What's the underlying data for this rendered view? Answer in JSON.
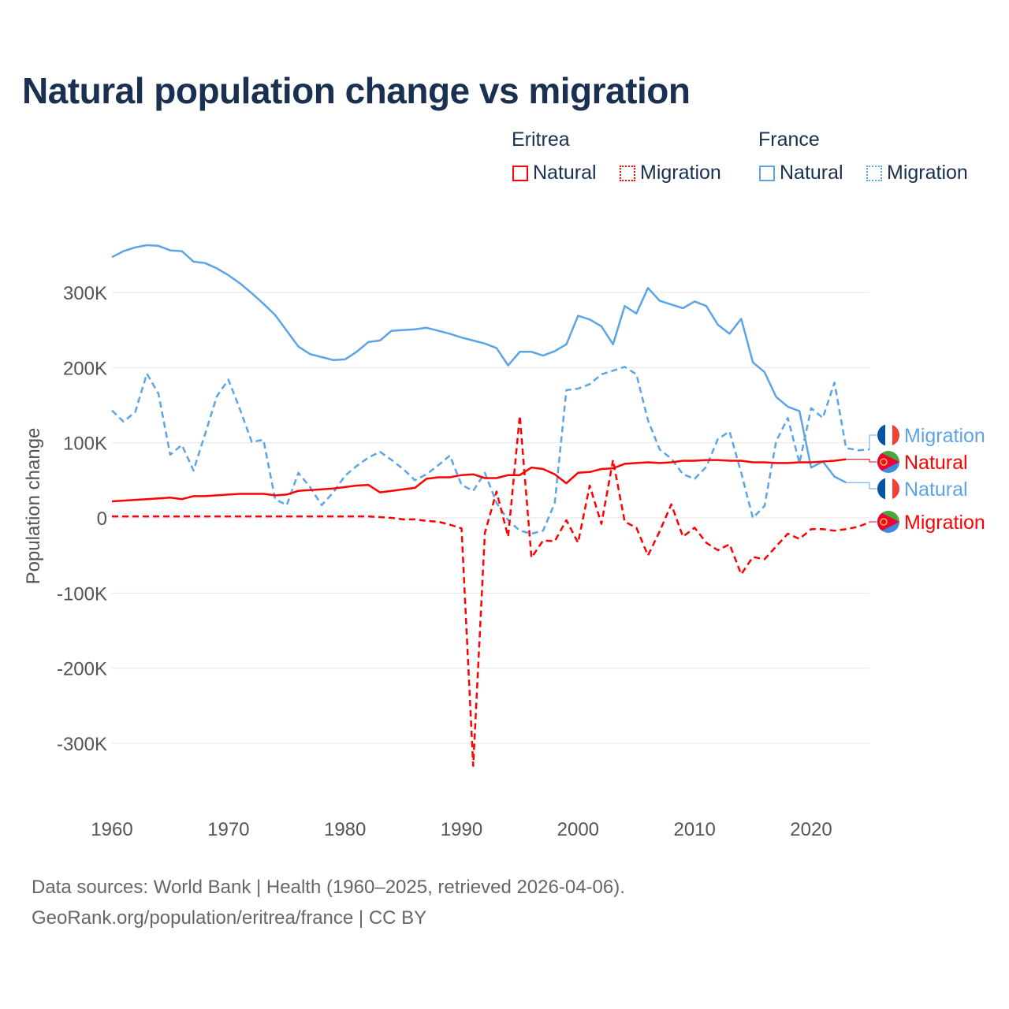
{
  "title": "Natural population change vs migration",
  "legend": {
    "groups": [
      {
        "name": "Eritrea",
        "items": [
          {
            "label": "Natural",
            "color": "#ff0000",
            "style": "solid"
          },
          {
            "label": "Migration",
            "color": "#ff0000",
            "style": "dotted"
          }
        ]
      },
      {
        "name": "France",
        "items": [
          {
            "label": "Natural",
            "color": "#5ba4e8",
            "style": "solid"
          },
          {
            "label": "Migration",
            "color": "#5ba4e8",
            "style": "dotted"
          }
        ]
      }
    ]
  },
  "footer": {
    "line1": "Data sources: World Bank | Health (1960–2025, retrieved 2026-04-06).",
    "line2": "GeoRank.org/population/eritrea/france | CC BY"
  },
  "chart_data": {
    "type": "line",
    "title": "Natural population change vs migration",
    "xlabel": "",
    "ylabel": "Population change",
    "xlim": [
      1960,
      2025
    ],
    "ylim": [
      -350000,
      380000
    ],
    "xticks": [
      1960,
      1970,
      1980,
      1990,
      2000,
      2010,
      2020
    ],
    "yticks": [
      {
        "v": 300000,
        "label": "300K"
      },
      {
        "v": 200000,
        "label": "200K"
      },
      {
        "v": 100000,
        "label": "100K"
      },
      {
        "v": 0,
        "label": "0"
      },
      {
        "v": -100000,
        "label": "-100K"
      },
      {
        "v": -200000,
        "label": "-200K"
      },
      {
        "v": -300000,
        "label": "-300K"
      }
    ],
    "grid": true,
    "legend_placement": "top-right",
    "series": [
      {
        "name": "France Natural",
        "country": "France",
        "kind": "Natural",
        "color": "#5ba4e8",
        "dash": false,
        "start_year": 1960,
        "values_k": [
          347,
          355,
          360,
          363,
          362,
          356,
          355,
          341,
          339,
          332,
          323,
          312,
          299,
          285,
          270,
          249,
          228,
          218,
          214,
          210,
          211,
          221,
          234,
          236,
          249,
          250,
          251,
          253,
          249,
          245,
          240,
          236,
          232,
          226,
          203,
          221,
          221,
          216,
          222,
          231,
          269,
          264,
          255,
          231,
          282,
          272,
          306,
          289,
          284,
          279,
          288,
          282,
          257,
          245,
          265,
          207,
          194,
          161,
          148,
          142,
          67,
          75,
          55,
          47
        ],
        "end_label": "Natural"
      },
      {
        "name": "France Migration",
        "country": "France",
        "kind": "Migration",
        "color": "#5ba4e8",
        "dash": true,
        "start_year": 1960,
        "values_k": [
          143,
          128,
          141,
          192,
          165,
          84,
          97,
          63,
          112,
          162,
          184,
          144,
          101,
          104,
          25,
          17,
          60,
          41,
          17,
          34,
          56,
          69,
          80,
          88,
          77,
          65,
          50,
          58,
          70,
          83,
          44,
          36,
          60,
          20,
          -3,
          -17,
          -21,
          -17,
          20,
          170,
          172,
          178,
          191,
          196,
          201,
          191,
          130,
          91,
          79,
          58,
          52,
          68,
          105,
          115,
          60,
          0,
          16,
          102,
          133,
          73,
          146,
          133,
          180,
          93,
          90,
          91
        ],
        "end_label": "Migration"
      },
      {
        "name": "Eritrea Natural",
        "country": "Eritrea",
        "kind": "Natural",
        "color": "#ff0000",
        "dash": false,
        "start_year": 1960,
        "values_k": [
          22,
          23,
          24,
          25,
          26,
          27,
          25,
          29,
          29,
          30,
          31,
          32,
          32,
          32,
          30,
          31,
          36,
          37,
          38,
          39,
          41,
          43,
          44,
          34,
          36,
          38,
          40,
          52,
          54,
          54,
          57,
          58,
          53,
          53,
          57,
          57,
          67,
          65,
          58,
          46,
          60,
          61,
          65,
          66,
          72,
          73,
          74,
          73,
          74,
          76,
          76,
          77,
          77,
          76,
          76,
          74,
          74,
          73,
          73,
          74,
          74,
          75,
          76,
          78
        ],
        "end_label": "Natural"
      },
      {
        "name": "Eritrea Migration",
        "country": "Eritrea",
        "kind": "Migration",
        "color": "#ff0000",
        "dash": true,
        "start_year": 1960,
        "values_k": [
          2,
          2,
          2,
          2,
          2,
          2,
          2,
          2,
          2,
          2,
          2,
          2,
          2,
          2,
          2,
          2,
          2,
          2,
          2,
          2,
          2,
          2,
          2,
          1,
          0,
          -2,
          -2,
          -4,
          -5,
          -9,
          -14,
          -330,
          -20,
          35,
          -25,
          136,
          -53,
          -30,
          -31,
          -3,
          -33,
          43,
          -8,
          77,
          -5,
          -13,
          -50,
          -18,
          18,
          -25,
          -13,
          -33,
          -43,
          -35,
          -75,
          -52,
          -55,
          -38,
          -21,
          -28,
          -15,
          -15,
          -17,
          -15,
          -12,
          -6
        ],
        "end_label": "Migration"
      }
    ]
  }
}
